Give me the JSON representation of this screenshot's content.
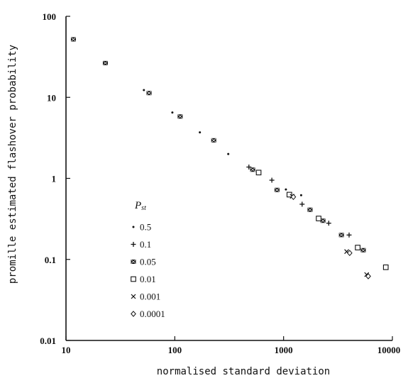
{
  "chart_data": {
    "type": "scatter",
    "title": "",
    "xlabel": "normalised standard deviation",
    "ylabel": "promille estimated flashover probability",
    "xscale": "log",
    "yscale": "log",
    "xlim": [
      10,
      10000
    ],
    "ylim": [
      0.01,
      100
    ],
    "x_ticks": [
      "10",
      "100",
      "1000",
      "10000"
    ],
    "y_ticks": [
      "0.01",
      "0.1",
      "1",
      "10",
      "100"
    ],
    "grid": false,
    "legend_title": "P",
    "legend_title_sub": "st",
    "legend_placement": "bottom-left inside plot",
    "series": [
      {
        "name": "0.5",
        "marker": "dot",
        "points": [
          [
            11.5,
            53
          ],
          [
            22.5,
            27
          ],
          [
            52,
            12.3
          ],
          [
            95,
            6.5
          ],
          [
            170,
            3.7
          ],
          [
            310,
            2.0
          ],
          [
            570,
            1.2
          ],
          [
            1050,
            0.73
          ],
          [
            1450,
            0.62
          ]
        ]
      },
      {
        "name": "0.1",
        "marker": "plus",
        "points": [
          [
            480,
            1.38
          ],
          [
            780,
            0.95
          ],
          [
            1480,
            0.48
          ],
          [
            2600,
            0.28
          ],
          [
            4000,
            0.2
          ]
        ]
      },
      {
        "name": "0.05",
        "marker": "square-filled",
        "points": [
          [
            11.7,
            52
          ],
          [
            23,
            26.5
          ],
          [
            58,
            11.3
          ],
          [
            112,
            5.8
          ],
          [
            228,
            2.95
          ],
          [
            520,
            1.28
          ],
          [
            870,
            0.72
          ],
          [
            1750,
            0.41
          ],
          [
            2300,
            0.3
          ],
          [
            3400,
            0.2
          ],
          [
            5400,
            0.13
          ]
        ]
      },
      {
        "name": "0.01",
        "marker": "square-open",
        "points": [
          [
            590,
            1.18
          ],
          [
            1130,
            0.63
          ],
          [
            2100,
            0.32
          ],
          [
            4800,
            0.14
          ],
          [
            8700,
            0.08
          ]
        ]
      },
      {
        "name": "0.001",
        "marker": "x",
        "points": [
          [
            1200,
            0.6
          ],
          [
            3800,
            0.125
          ],
          [
            5800,
            0.065
          ]
        ]
      },
      {
        "name": "0.0001",
        "marker": "diamond-open",
        "points": [
          [
            1230,
            0.59
          ],
          [
            4050,
            0.12
          ],
          [
            6000,
            0.062
          ]
        ]
      }
    ]
  }
}
